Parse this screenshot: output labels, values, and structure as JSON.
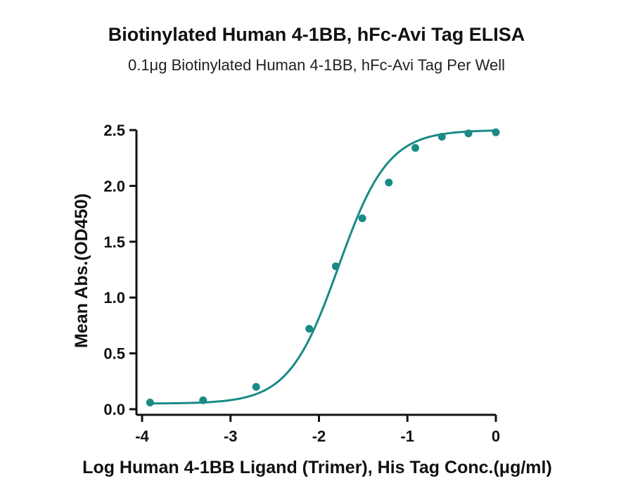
{
  "chart_data": {
    "type": "scatter",
    "title": "Biotinylated Human 4-1BB, hFc-Avi Tag ELISA",
    "subtitle": "0.1μg Biotinylated Human 4-1BB, hFc-Avi Tag Per Well",
    "xlabel": "Log Human 4-1BB Ligand (Trimer), His Tag Conc.(μg/ml)",
    "ylabel": "Mean Abs.(OD450)",
    "xlim": [
      -4,
      0
    ],
    "ylim": [
      0,
      2.5
    ],
    "x_ticks": [
      -4,
      -3,
      -2,
      -1,
      0
    ],
    "x_tick_labels": [
      "-4",
      "-3",
      "-2",
      "-1",
      "0"
    ],
    "y_ticks": [
      0,
      0.5,
      1.0,
      1.5,
      2.0,
      2.5
    ],
    "y_tick_labels": [
      "0.0",
      "0.5",
      "1.0",
      "1.5",
      "2.0",
      "2.5"
    ],
    "grid": false,
    "legend": "none",
    "series": [
      {
        "color": "#1a8a87",
        "points": [
          {
            "x": -3.91,
            "y": 0.06
          },
          {
            "x": -3.31,
            "y": 0.08
          },
          {
            "x": -2.71,
            "y": 0.2
          },
          {
            "x": -2.11,
            "y": 0.72
          },
          {
            "x": -1.81,
            "y": 1.28
          },
          {
            "x": -1.51,
            "y": 1.71
          },
          {
            "x": -1.21,
            "y": 2.03
          },
          {
            "x": -0.91,
            "y": 2.34
          },
          {
            "x": -0.61,
            "y": 2.44
          },
          {
            "x": -0.31,
            "y": 2.47
          },
          {
            "x": 0.0,
            "y": 2.48
          }
        ],
        "fit": {
          "model": "4PL",
          "bottom": 0.05,
          "top": 2.5,
          "log_ec50": -1.78,
          "hill_slope": 1.55
        }
      }
    ]
  }
}
